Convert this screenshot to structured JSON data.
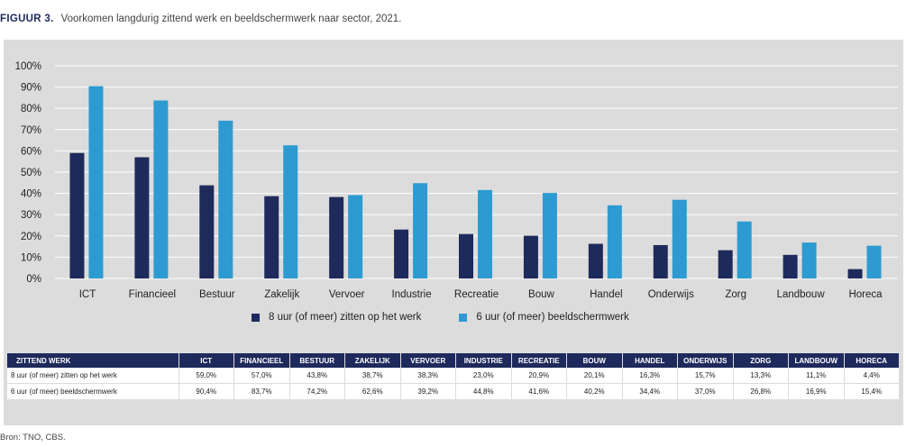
{
  "figure": {
    "label": "FIGUUR 3.",
    "title": "Voorkomen langdurig zittend werk en beeldschermwerk naar sector, 2021."
  },
  "colors": {
    "series1": "#1f2a5c",
    "series2": "#2d9bd2",
    "panel": "#dcdcdc",
    "grid": "#ffffff"
  },
  "chart_data": {
    "type": "bar",
    "categories": [
      "ICT",
      "Financieel",
      "Bestuur",
      "Zakelijk",
      "Vervoer",
      "Industrie",
      "Recreatie",
      "Bouw",
      "Handel",
      "Onderwijs",
      "Zorg",
      "Landbouw",
      "Horeca"
    ],
    "series": [
      {
        "name": "8 uur (of meer) zitten op het werk",
        "values": [
          59.0,
          57.0,
          43.8,
          38.7,
          38.3,
          23.0,
          20.9,
          20.1,
          16.3,
          15.7,
          13.3,
          11.1,
          4.4
        ]
      },
      {
        "name": "6 uur (of meer) beeldschermwerk",
        "values": [
          90.4,
          83.7,
          74.2,
          62.6,
          39.2,
          44.8,
          41.6,
          40.2,
          34.4,
          37.0,
          26.8,
          16.9,
          15.4
        ]
      }
    ],
    "ylim": [
      0,
      100
    ],
    "yticks": [
      "0%",
      "10%",
      "20%",
      "30%",
      "40%",
      "50%",
      "60%",
      "70%",
      "80%",
      "90%",
      "100%"
    ],
    "grid": true,
    "legend_position": "bottom"
  },
  "table": {
    "header_first": "ZITTEND WERK",
    "columns": [
      "ICT",
      "FINANCIEEL",
      "BESTUUR",
      "ZAKELIJK",
      "VERVOER",
      "INDUSTRIE",
      "RECREATIE",
      "BOUW",
      "HANDEL",
      "ONDERWIJS",
      "ZORG",
      "LANDBOUW",
      "HORECA"
    ],
    "rows": [
      {
        "label": "8 uur (of meer) zitten op het werk",
        "cells": [
          "59,0%",
          "57,0%",
          "43,8%",
          "38,7%",
          "38,3%",
          "23,0%",
          "20,9%",
          "20,1%",
          "16,3%",
          "15,7%",
          "13,3%",
          "11,1%",
          "4,4%"
        ]
      },
      {
        "label": "6 uur (of meer) beeldschermwerk",
        "cells": [
          "90,4%",
          "83,7%",
          "74,2%",
          "62,6%",
          "39,2%",
          "44,8%",
          "41,6%",
          "40,2%",
          "34,4%",
          "37,0%",
          "26,8%",
          "16,9%",
          "15,4%"
        ]
      }
    ]
  },
  "source": "Bron: TNO, CBS."
}
